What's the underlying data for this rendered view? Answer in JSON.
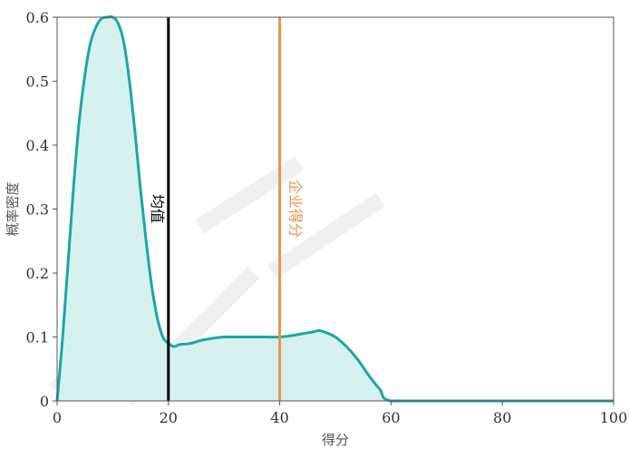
{
  "chart_data": {
    "type": "area",
    "xlabel": "得分",
    "ylabel": "概率密度",
    "xlim": [
      0,
      100
    ],
    "ylim": [
      0,
      0.6
    ],
    "x_ticks": [
      0,
      20,
      40,
      60,
      80,
      100
    ],
    "y_ticks": [
      0,
      0.1,
      0.2,
      0.3,
      0.4,
      0.5,
      0.6
    ],
    "y_tick_labels": [
      "0",
      "0.1",
      "0.2",
      "0.3",
      "0.4",
      "0.5",
      "0.6"
    ],
    "grid": false,
    "series": [
      {
        "x": [
          0,
          1,
          2,
          3,
          4,
          5,
          6,
          7,
          8,
          9,
          10,
          11,
          12,
          13,
          14,
          15,
          16,
          17,
          18,
          19,
          20,
          21,
          22,
          24,
          26,
          28,
          30,
          33,
          36,
          40,
          42,
          44,
          46,
          47,
          48,
          50,
          52,
          54,
          56,
          58,
          60,
          70,
          80,
          90,
          100
        ],
        "y": [
          0,
          0.1,
          0.22,
          0.34,
          0.44,
          0.51,
          0.56,
          0.585,
          0.598,
          0.6,
          0.6,
          0.59,
          0.56,
          0.5,
          0.42,
          0.33,
          0.25,
          0.18,
          0.13,
          0.1,
          0.09,
          0.085,
          0.088,
          0.09,
          0.095,
          0.098,
          0.1,
          0.1,
          0.1,
          0.1,
          0.102,
          0.105,
          0.108,
          0.11,
          0.108,
          0.1,
          0.085,
          0.065,
          0.04,
          0.018,
          0,
          0,
          0,
          0,
          0
        ],
        "color": "#1aa7a7",
        "fill": "#d7f1f1"
      }
    ],
    "annotations": [
      {
        "x": 20,
        "label": "均值",
        "color": "#000000"
      },
      {
        "x": 40,
        "label": "企业得分",
        "color": "#e8944a"
      }
    ]
  }
}
